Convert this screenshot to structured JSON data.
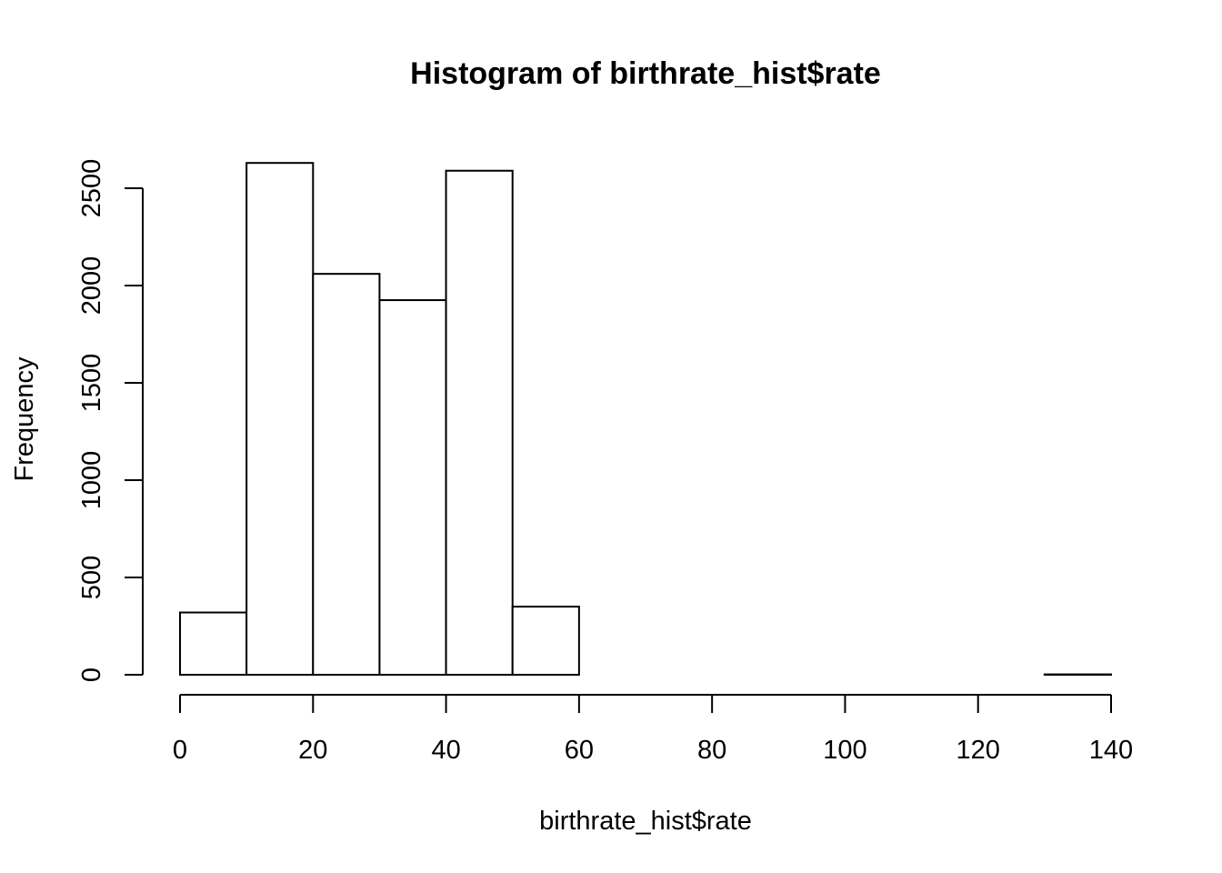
{
  "chart_data": {
    "type": "bar",
    "title": "Histogram of birthrate_hist$rate",
    "xlabel": "birthrate_hist$rate",
    "ylabel": "Frequency",
    "bins": [
      {
        "start": 0,
        "end": 10,
        "count": 320
      },
      {
        "start": 10,
        "end": 20,
        "count": 2630
      },
      {
        "start": 20,
        "end": 30,
        "count": 2060
      },
      {
        "start": 30,
        "end": 40,
        "count": 1925
      },
      {
        "start": 40,
        "end": 50,
        "count": 2590
      },
      {
        "start": 50,
        "end": 60,
        "count": 350
      },
      {
        "start": 60,
        "end": 70,
        "count": 0
      },
      {
        "start": 70,
        "end": 80,
        "count": 0
      },
      {
        "start": 80,
        "end": 90,
        "count": 0
      },
      {
        "start": 90,
        "end": 100,
        "count": 0
      },
      {
        "start": 100,
        "end": 110,
        "count": 0
      },
      {
        "start": 110,
        "end": 120,
        "count": 0
      },
      {
        "start": 120,
        "end": 130,
        "count": 0
      },
      {
        "start": 130,
        "end": 140,
        "count": 2
      }
    ],
    "x_ticks": [
      "0",
      "20",
      "40",
      "60",
      "80",
      "100",
      "120",
      "140"
    ],
    "y_ticks": [
      "0",
      "500",
      "1000",
      "1500",
      "2000",
      "2500"
    ],
    "xlim": [
      0,
      140
    ],
    "ylim": [
      0,
      2500
    ],
    "grid": false,
    "legend": "none"
  }
}
